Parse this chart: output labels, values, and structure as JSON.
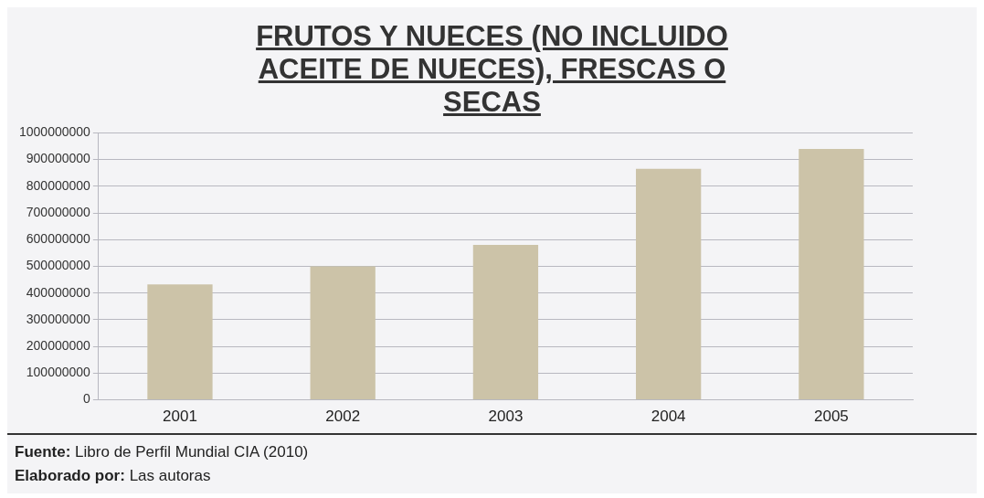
{
  "chart_data": {
    "type": "bar",
    "title": "FRUTOS Y NUECES (NO INCLUIDO ACEITE DE NUECES), FRESCAS O SECAS",
    "categories": [
      "2001",
      "2002",
      "2003",
      "2004",
      "2005"
    ],
    "values": [
      432000000,
      500000000,
      580000000,
      865000000,
      940000000
    ],
    "color": "#ccc3a8",
    "ylim": [
      0,
      1000000000
    ],
    "yticks": [
      0,
      100000000,
      200000000,
      300000000,
      400000000,
      500000000,
      600000000,
      700000000,
      800000000,
      900000000,
      1000000000
    ],
    "grid": "y",
    "annotations": [
      "Fuente: Libro de Perfil Mundial CIA (2010)",
      "Elaborado por: Las autoras"
    ]
  }
}
